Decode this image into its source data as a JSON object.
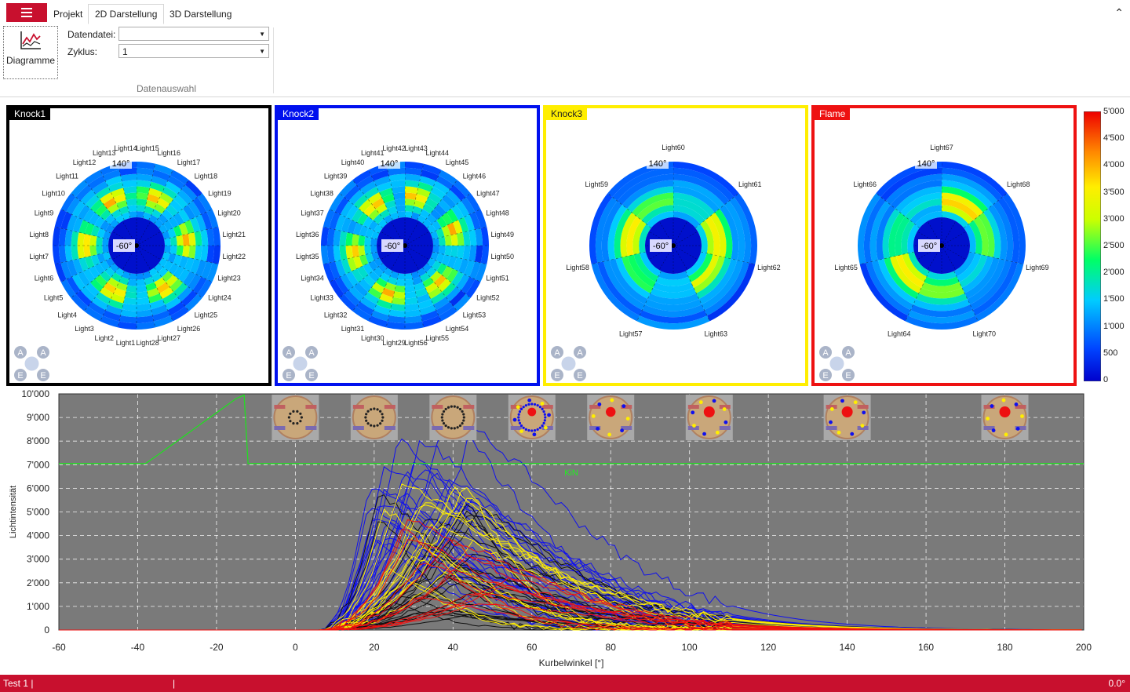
{
  "tabs": {
    "project": "Projekt",
    "d2": "2D Darstellung",
    "d3": "3D Darstellung"
  },
  "ribbon": {
    "diagram_button": "Diagramme",
    "datafile_label": "Datendatei:",
    "datafile_value": "",
    "cycle_label": "Zyklus:",
    "cycle_value": "1",
    "group_label": "Datenauswahl"
  },
  "polar_panels": [
    {
      "title": "Knock1",
      "border": "#000000",
      "title_bg": "#000000",
      "title_fg": "#ffffff",
      "labels": [
        "Light1",
        "Light2",
        "Light3",
        "Light4",
        "Light5",
        "Light6",
        "Light7",
        "Light8",
        "Light9",
        "Light10",
        "Light11",
        "Light12",
        "Light13",
        "Light14",
        "Light15",
        "Light16",
        "Light17",
        "Light18",
        "Light19",
        "Light20",
        "Light21",
        "Light22",
        "Light23",
        "Light24",
        "Light25",
        "Light26",
        "Light27",
        "Light28"
      ],
      "angle_top": "140°",
      "angle_center": "-60°"
    },
    {
      "title": "Knock2",
      "border": "#0010ee",
      "title_bg": "#0010ee",
      "title_fg": "#ffffff",
      "labels": [
        "Light29",
        "Light30",
        "Light31",
        "Light32",
        "Light33",
        "Light34",
        "Light35",
        "Light36",
        "Light37",
        "Light38",
        "Light39",
        "Light40",
        "Light41",
        "Light42",
        "Light43",
        "Light44",
        "Light45",
        "Light46",
        "Light47",
        "Light48",
        "Light49",
        "Light50",
        "Light51",
        "Light52",
        "Light53",
        "Light54",
        "Light55",
        "Light56"
      ],
      "angle_top": "140°",
      "angle_center": "-60°"
    },
    {
      "title": "Knock3",
      "border": "#ffee00",
      "title_bg": "#ffee00",
      "title_fg": "#222222",
      "labels": [
        "Light57",
        "Light58",
        "Light59",
        "Light60",
        "Light61",
        "Light62",
        "Light63"
      ],
      "angle_top": "140°",
      "angle_center": "-60°"
    },
    {
      "title": "Flame",
      "border": "#ee1111",
      "title_bg": "#ee1111",
      "title_fg": "#ffffff",
      "labels": [
        "Light64",
        "Light65",
        "Light66",
        "Light67",
        "Light68",
        "Light69",
        "Light70"
      ],
      "angle_top": "140°",
      "angle_center": "-60°"
    }
  ],
  "colorbar": {
    "ticks": [
      "5'000",
      "4'500",
      "4'000",
      "3'500",
      "3'000",
      "2'500",
      "2'000",
      "1'500",
      "1'000",
      "500",
      "0"
    ]
  },
  "chart_data": {
    "type": "line",
    "xlabel": "Kurbelwinkel [°]",
    "ylabel": "Lichtintensität",
    "xlim": [
      -60,
      200
    ],
    "ylim": [
      0,
      10000
    ],
    "x_ticks": [
      "-60",
      "-40",
      "-20",
      "0",
      "20",
      "40",
      "60",
      "80",
      "100",
      "120",
      "140",
      "160",
      "180",
      "200"
    ],
    "y_ticks": [
      "0",
      "1'000",
      "2'000",
      "3'000",
      "4'000",
      "5'000",
      "6'000",
      "7'000",
      "8'000",
      "9'000",
      "10'000"
    ],
    "background": "#7a7a7a",
    "kin_label": "KiN",
    "kin_series": {
      "x": [
        -60,
        -38,
        -35,
        -30,
        -25,
        -20,
        -15,
        -13,
        -12,
        200
      ],
      "y": [
        7050,
        7050,
        7400,
        8000,
        8600,
        9200,
        9800,
        9950,
        7050,
        7050
      ]
    },
    "bundles": [
      {
        "color": "#1010ee",
        "count": 30,
        "peak_range": [
          3000,
          9000
        ],
        "pos_range": [
          18,
          46
        ]
      },
      {
        "color": "#111111",
        "count": 25,
        "peak_range": [
          600,
          6000
        ],
        "pos_range": [
          20,
          50
        ]
      },
      {
        "color": "#ffee00",
        "count": 14,
        "peak_range": [
          2000,
          6500
        ],
        "pos_range": [
          22,
          48
        ]
      },
      {
        "color": "#ee1111",
        "count": 12,
        "peak_range": [
          1000,
          5500
        ],
        "pos_range": [
          25,
          55
        ]
      }
    ],
    "thumbnails_x": [
      0,
      20,
      40,
      60,
      80,
      105,
      140,
      180
    ]
  },
  "status": {
    "left": "Test 1 |",
    "sep": "|",
    "right": "0.0°"
  }
}
